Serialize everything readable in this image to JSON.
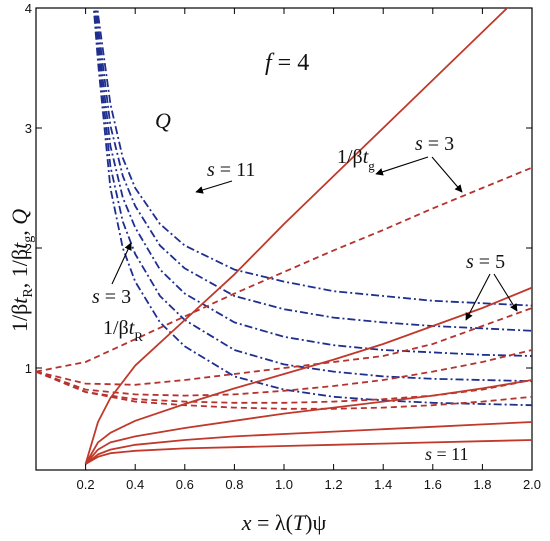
{
  "chart_data": {
    "type": "line",
    "title": "",
    "xlabel": {
      "var": "x",
      "eq": " = λ(",
      "T": "T",
      "close": ")ψ"
    },
    "ylabel": {
      "p1": "1/β",
      "t1": "t",
      "s1": "R",
      "c1": ", 1/β",
      "t2": "t",
      "s2": "g",
      "c2": ", ",
      "q": "Q"
    },
    "xlim": [
      0.0,
      2.0
    ],
    "ylim": [
      0.15,
      4.0
    ],
    "x_ticks": [
      "0.2",
      "0.4",
      "0.6",
      "0.8",
      "1.0",
      "1.2",
      "1.4",
      "1.6",
      "1.8",
      "2.0"
    ],
    "y_ticks": [
      "1",
      "2",
      "3",
      "4"
    ],
    "grid": false,
    "colors": {
      "Q": "#1f2f8f",
      "tR": "#b5322e",
      "tg": "#c0392b"
    },
    "annotations": {
      "f": {
        "var": "f",
        "eq": " = 4"
      },
      "Q": "Q",
      "s11_top": {
        "var": "s",
        "eq": " = 11"
      },
      "s3_left": {
        "var": "s",
        "eq": " = 3"
      },
      "s3_right": {
        "var": "s",
        "eq": " = 3"
      },
      "s5": {
        "var": "s",
        "eq": " = 5"
      },
      "s11_bottom": {
        "var": "s",
        "eq": " = 11"
      },
      "tg_label": {
        "p": "1/β",
        "t": "t",
        "sub": "g"
      },
      "tR_label": {
        "p": "1/β",
        "t": "t",
        "sub": "R"
      }
    },
    "series": [
      {
        "group": "Q",
        "style": "dashdot",
        "x": [
          0.22,
          0.25,
          0.3,
          0.35,
          0.4,
          0.5,
          0.6,
          0.8,
          1.0,
          1.2,
          1.4,
          1.6,
          1.8,
          2.0
        ],
        "y": [
          4.6,
          3.95,
          3.2,
          2.75,
          2.5,
          2.2,
          2.02,
          1.82,
          1.72,
          1.64,
          1.6,
          1.56,
          1.54,
          1.52
        ]
      },
      {
        "group": "Q",
        "style": "dashdot",
        "x": [
          0.21,
          0.25,
          0.3,
          0.35,
          0.4,
          0.5,
          0.6,
          0.8,
          1.0,
          1.2,
          1.4,
          1.6,
          1.8,
          2.0
        ],
        "y": [
          4.6,
          3.85,
          3.02,
          2.6,
          2.35,
          2.02,
          1.83,
          1.6,
          1.49,
          1.42,
          1.38,
          1.35,
          1.33,
          1.31
        ]
      },
      {
        "group": "Q",
        "style": "dashdot",
        "x": [
          0.21,
          0.25,
          0.3,
          0.35,
          0.4,
          0.5,
          0.6,
          0.8,
          1.0,
          1.2,
          1.4,
          1.6,
          1.8,
          2.0
        ],
        "y": [
          4.6,
          3.75,
          2.85,
          2.42,
          2.17,
          1.82,
          1.62,
          1.38,
          1.26,
          1.19,
          1.15,
          1.13,
          1.11,
          1.1
        ]
      },
      {
        "group": "Q",
        "style": "dashdot",
        "x": [
          0.21,
          0.25,
          0.3,
          0.35,
          0.4,
          0.5,
          0.6,
          0.8,
          1.0,
          1.2,
          1.4,
          1.6,
          1.8,
          2.0
        ],
        "y": [
          4.6,
          3.65,
          2.68,
          2.22,
          1.95,
          1.6,
          1.4,
          1.15,
          1.03,
          0.97,
          0.93,
          0.91,
          0.9,
          0.89
        ]
      },
      {
        "group": "Q",
        "style": "dashdot",
        "x": [
          0.21,
          0.25,
          0.3,
          0.35,
          0.4,
          0.5,
          0.6,
          0.8,
          1.0,
          1.2,
          1.4,
          1.6,
          1.8,
          2.0
        ],
        "y": [
          4.6,
          3.55,
          2.5,
          2.0,
          1.72,
          1.38,
          1.18,
          0.93,
          0.82,
          0.76,
          0.73,
          0.71,
          0.7,
          0.69
        ]
      },
      {
        "group": "tR",
        "style": "dashed",
        "x": [
          0,
          0.2,
          0.4,
          0.6,
          0.8,
          1.0,
          1.2,
          1.4,
          1.6,
          1.8,
          2.0
        ],
        "y": [
          0.97,
          1.05,
          1.24,
          1.43,
          1.62,
          1.8,
          1.98,
          2.15,
          2.33,
          2.5,
          2.67
        ]
      },
      {
        "group": "tR",
        "style": "dashed",
        "x": [
          0,
          0.2,
          0.4,
          0.6,
          0.8,
          1.0,
          1.2,
          1.4,
          1.6,
          1.8,
          2.0
        ],
        "y": [
          0.97,
          0.87,
          0.86,
          0.9,
          0.95,
          1.0,
          1.05,
          1.1,
          1.2,
          1.35,
          1.5
        ]
      },
      {
        "group": "tR",
        "style": "dashed",
        "x": [
          0,
          0.2,
          0.4,
          0.6,
          0.8,
          1.0,
          1.2,
          1.4,
          1.6,
          1.8,
          2.0
        ],
        "y": [
          0.97,
          0.82,
          0.78,
          0.77,
          0.78,
          0.81,
          0.85,
          0.9,
          0.97,
          1.05,
          1.15
        ]
      },
      {
        "group": "tR",
        "style": "dashed",
        "x": [
          0,
          0.2,
          0.4,
          0.6,
          0.8,
          1.0,
          1.2,
          1.4,
          1.6,
          1.8,
          2.0
        ],
        "y": [
          0.97,
          0.8,
          0.74,
          0.72,
          0.71,
          0.71,
          0.72,
          0.74,
          0.77,
          0.82,
          0.9
        ]
      },
      {
        "group": "tR",
        "style": "dashed",
        "x": [
          0,
          0.2,
          0.4,
          0.6,
          0.8,
          1.0,
          1.2,
          1.4,
          1.6,
          1.8,
          2.0
        ],
        "y": [
          0.97,
          0.8,
          0.72,
          0.69,
          0.67,
          0.66,
          0.66,
          0.67,
          0.69,
          0.72,
          0.76
        ]
      },
      {
        "group": "tg",
        "style": "solid",
        "x": [
          0.2,
          0.25,
          0.3,
          0.4,
          0.6,
          0.8,
          1.0,
          1.2,
          1.4,
          1.6,
          1.8,
          2.0
        ],
        "y": [
          0.2,
          0.55,
          0.75,
          1.02,
          1.4,
          1.78,
          2.2,
          2.6,
          3.0,
          3.4,
          3.8,
          4.2
        ]
      },
      {
        "group": "tg",
        "style": "solid",
        "x": [
          0.2,
          0.25,
          0.3,
          0.4,
          0.6,
          0.8,
          1.0,
          1.2,
          1.4,
          1.6,
          1.8,
          2.0
        ],
        "y": [
          0.2,
          0.38,
          0.46,
          0.56,
          0.7,
          0.83,
          0.95,
          1.07,
          1.2,
          1.35,
          1.5,
          1.67
        ]
      },
      {
        "group": "tg",
        "style": "solid",
        "x": [
          0.2,
          0.25,
          0.3,
          0.4,
          0.6,
          0.8,
          1.0,
          1.2,
          1.4,
          1.6,
          1.8,
          2.0
        ],
        "y": [
          0.2,
          0.32,
          0.38,
          0.43,
          0.5,
          0.56,
          0.62,
          0.67,
          0.72,
          0.77,
          0.83,
          0.9
        ]
      },
      {
        "group": "tg",
        "style": "solid",
        "x": [
          0.2,
          0.25,
          0.3,
          0.4,
          0.6,
          0.8,
          1.0,
          1.2,
          1.4,
          1.6,
          1.8,
          2.0
        ],
        "y": [
          0.2,
          0.28,
          0.32,
          0.36,
          0.4,
          0.43,
          0.45,
          0.47,
          0.49,
          0.51,
          0.53,
          0.55
        ]
      },
      {
        "group": "tg",
        "style": "solid",
        "x": [
          0.2,
          0.25,
          0.3,
          0.4,
          0.6,
          0.8,
          1.0,
          1.2,
          1.4,
          1.6,
          1.8,
          2.0
        ],
        "y": [
          0.2,
          0.26,
          0.29,
          0.31,
          0.33,
          0.34,
          0.35,
          0.36,
          0.37,
          0.38,
          0.39,
          0.4
        ]
      }
    ]
  }
}
